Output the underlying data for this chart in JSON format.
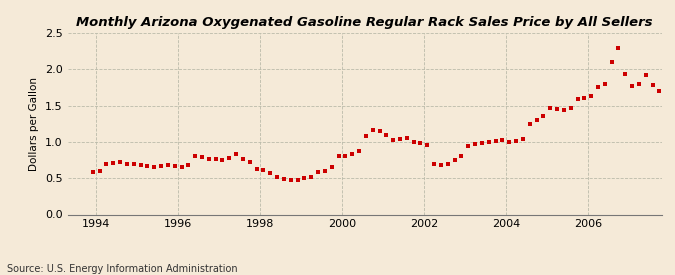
{
  "title": "Monthly Arizona Oxygenated Gasoline Regular Rack Sales Price by All Sellers",
  "ylabel": "Dollars per Gallon",
  "source": "Source: U.S. Energy Information Administration",
  "background_color": "#f5ead8",
  "point_color": "#cc0000",
  "ylim": [
    0.0,
    2.5
  ],
  "yticks": [
    0.0,
    0.5,
    1.0,
    1.5,
    2.0,
    2.5
  ],
  "xticks_years": [
    1994,
    1996,
    1998,
    2000,
    2002,
    2004,
    2006
  ],
  "xlim": [
    1993.3,
    2007.8
  ],
  "data": [
    [
      1993.917,
      0.58
    ],
    [
      1994.083,
      0.6
    ],
    [
      1994.25,
      0.7
    ],
    [
      1994.417,
      0.71
    ],
    [
      1994.583,
      0.72
    ],
    [
      1994.75,
      0.7
    ],
    [
      1994.917,
      0.69
    ],
    [
      1995.083,
      0.68
    ],
    [
      1995.25,
      0.67
    ],
    [
      1995.417,
      0.66
    ],
    [
      1995.583,
      0.67
    ],
    [
      1995.75,
      0.68
    ],
    [
      1995.917,
      0.67
    ],
    [
      1996.083,
      0.66
    ],
    [
      1996.25,
      0.68
    ],
    [
      1996.417,
      0.8
    ],
    [
      1996.583,
      0.79
    ],
    [
      1996.75,
      0.77
    ],
    [
      1996.917,
      0.76
    ],
    [
      1997.083,
      0.75
    ],
    [
      1997.25,
      0.78
    ],
    [
      1997.417,
      0.83
    ],
    [
      1997.583,
      0.77
    ],
    [
      1997.75,
      0.72
    ],
    [
      1997.917,
      0.63
    ],
    [
      1998.083,
      0.61
    ],
    [
      1998.25,
      0.57
    ],
    [
      1998.417,
      0.52
    ],
    [
      1998.583,
      0.49
    ],
    [
      1998.75,
      0.48
    ],
    [
      1998.917,
      0.48
    ],
    [
      1999.083,
      0.5
    ],
    [
      1999.25,
      0.52
    ],
    [
      1999.417,
      0.59
    ],
    [
      1999.583,
      0.6
    ],
    [
      1999.75,
      0.65
    ],
    [
      1999.917,
      0.8
    ],
    [
      2000.083,
      0.8
    ],
    [
      2000.25,
      0.84
    ],
    [
      2000.417,
      0.88
    ],
    [
      2000.583,
      1.08
    ],
    [
      2000.75,
      1.17
    ],
    [
      2000.917,
      1.15
    ],
    [
      2001.083,
      1.1
    ],
    [
      2001.25,
      1.02
    ],
    [
      2001.417,
      1.04
    ],
    [
      2001.583,
      1.05
    ],
    [
      2001.75,
      1.0
    ],
    [
      2001.917,
      0.98
    ],
    [
      2002.083,
      0.96
    ],
    [
      2002.25,
      0.7
    ],
    [
      2002.417,
      0.68
    ],
    [
      2002.583,
      0.69
    ],
    [
      2002.75,
      0.75
    ],
    [
      2002.917,
      0.8
    ],
    [
      2003.083,
      0.95
    ],
    [
      2003.25,
      0.97
    ],
    [
      2003.417,
      0.99
    ],
    [
      2003.583,
      1.0
    ],
    [
      2003.75,
      1.01
    ],
    [
      2003.917,
      1.03
    ],
    [
      2004.083,
      1.0
    ],
    [
      2004.25,
      1.01
    ],
    [
      2004.417,
      1.04
    ],
    [
      2004.583,
      1.25
    ],
    [
      2004.75,
      1.3
    ],
    [
      2004.917,
      1.35
    ],
    [
      2005.083,
      1.47
    ],
    [
      2005.25,
      1.45
    ],
    [
      2005.417,
      1.44
    ],
    [
      2005.583,
      1.47
    ],
    [
      2005.75,
      1.59
    ],
    [
      2005.917,
      1.6
    ],
    [
      2006.083,
      1.63
    ],
    [
      2006.25,
      1.76
    ],
    [
      2006.417,
      1.8
    ],
    [
      2006.583,
      2.1
    ],
    [
      2006.75,
      2.3
    ],
    [
      2006.917,
      1.93
    ],
    [
      2007.083,
      1.77
    ],
    [
      2007.25,
      1.8
    ],
    [
      2007.417,
      1.92
    ],
    [
      2007.583,
      1.79
    ],
    [
      2007.75,
      1.7
    ]
  ]
}
